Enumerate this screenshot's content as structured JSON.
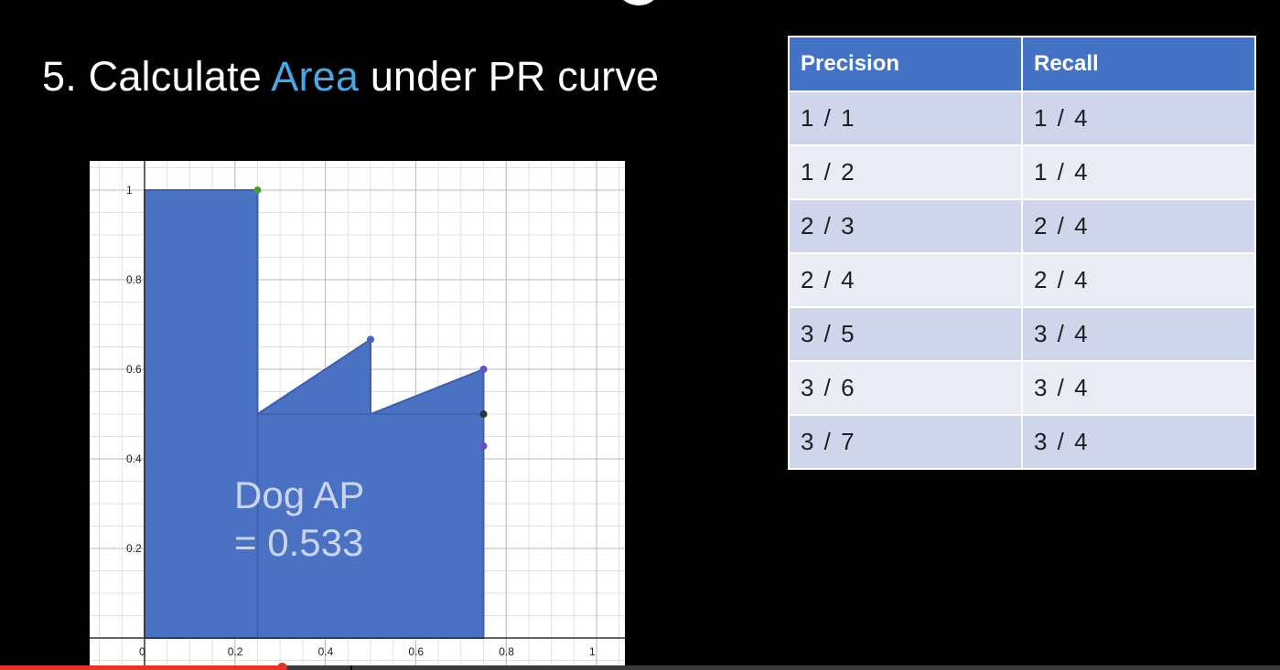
{
  "slide": {
    "title_prefix": "5. Calculate ",
    "title_accent": "Area",
    "title_suffix": " under PR curve",
    "annotation_line1": "Dog AP",
    "annotation_line2": "= 0.533"
  },
  "table": {
    "headers": [
      "Precision",
      "Recall"
    ],
    "rows": [
      [
        "1 / 1",
        "1 / 4"
      ],
      [
        "1 / 2",
        "1 / 4"
      ],
      [
        "2 / 3",
        "2 / 4"
      ],
      [
        "2 / 4",
        "2 / 4"
      ],
      [
        "3 / 5",
        "3 / 4"
      ],
      [
        "3 / 6",
        "3 / 4"
      ],
      [
        "3 / 7",
        "3 / 4"
      ]
    ]
  },
  "chart_data": {
    "type": "area",
    "x_ticks": [
      "0",
      "0.2",
      "0.4",
      "0.6",
      "0.8",
      "1"
    ],
    "y_ticks": [
      "0.2",
      "0.4",
      "0.6",
      "0.8",
      "1"
    ],
    "xlim": [
      0,
      1
    ],
    "ylim": [
      0,
      1
    ],
    "grid": true,
    "points": [
      {
        "x": 0.25,
        "y": 1.0
      },
      {
        "x": 0.5,
        "y": 0.6667
      },
      {
        "x": 0.75,
        "y": 0.6
      },
      {
        "x": 0.75,
        "y": 0.5
      },
      {
        "x": 0.75,
        "y": 0.4286
      }
    ],
    "area_fill": "#4a71c2",
    "area_edge": "#3d5fae"
  },
  "video": {
    "progress_fraction": 0.22
  }
}
